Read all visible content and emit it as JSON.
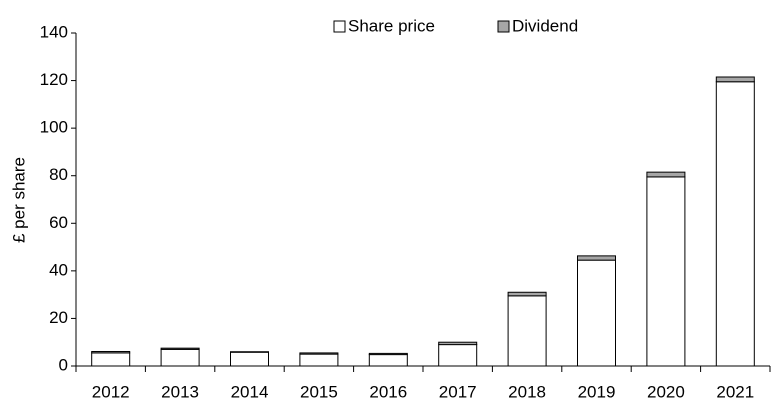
{
  "chart_data": {
    "type": "stacked_bar",
    "y_label": "£ per share",
    "categories": [
      "2012",
      "2013",
      "2014",
      "2015",
      "2016",
      "2017",
      "2018",
      "2019",
      "2020",
      "2021"
    ],
    "series": [
      {
        "name": "Share price",
        "color": "#ffffff",
        "values": [
          5.5,
          7,
          5.8,
          5,
          4.8,
          9,
          29.5,
          44.5,
          79.5,
          119.5
        ]
      },
      {
        "name": "Dividend",
        "color": "#a6a6a6",
        "values": [
          0.6,
          0.5,
          0.2,
          0.5,
          0.5,
          1,
          1.5,
          1.8,
          2,
          2
        ]
      }
    ],
    "ylim": [
      0,
      140
    ],
    "yticks": [
      0,
      20,
      40,
      60,
      80,
      100,
      120,
      140
    ],
    "legend": "top"
  }
}
